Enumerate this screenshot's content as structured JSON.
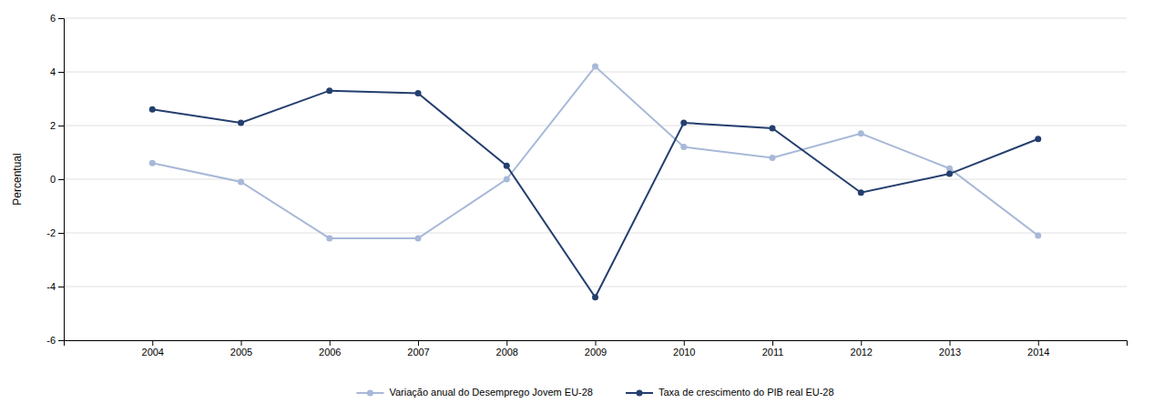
{
  "chart_data": {
    "type": "line",
    "x": [
      2004,
      2005,
      2006,
      2007,
      2008,
      2009,
      2010,
      2011,
      2012,
      2013,
      2014
    ],
    "series": [
      {
        "name": "Variação anual do Desemprego Jovem EU-28",
        "color": "#a8b8d8",
        "marker": "circle",
        "values": [
          0.6,
          -0.1,
          -2.2,
          -2.2,
          0.0,
          4.2,
          1.2,
          0.8,
          1.7,
          0.4,
          -2.1
        ]
      },
      {
        "name": "Taxa de crescimento do PIB real EU-28",
        "color": "#243f6e",
        "marker": "circle",
        "values": [
          2.6,
          2.1,
          3.3,
          3.2,
          0.5,
          -4.4,
          2.1,
          1.9,
          -0.5,
          0.2,
          1.5
        ]
      }
    ],
    "ylabel": "Percentual",
    "xlim": [
      2003,
      2015
    ],
    "xticks": [
      2004,
      2005,
      2006,
      2007,
      2008,
      2009,
      2010,
      2011,
      2012,
      2013,
      2014
    ],
    "ylim": [
      -6,
      6
    ],
    "yticks": [
      -6,
      -4,
      -2,
      0,
      2,
      4,
      6
    ],
    "grid": true,
    "legend": "bottom"
  }
}
